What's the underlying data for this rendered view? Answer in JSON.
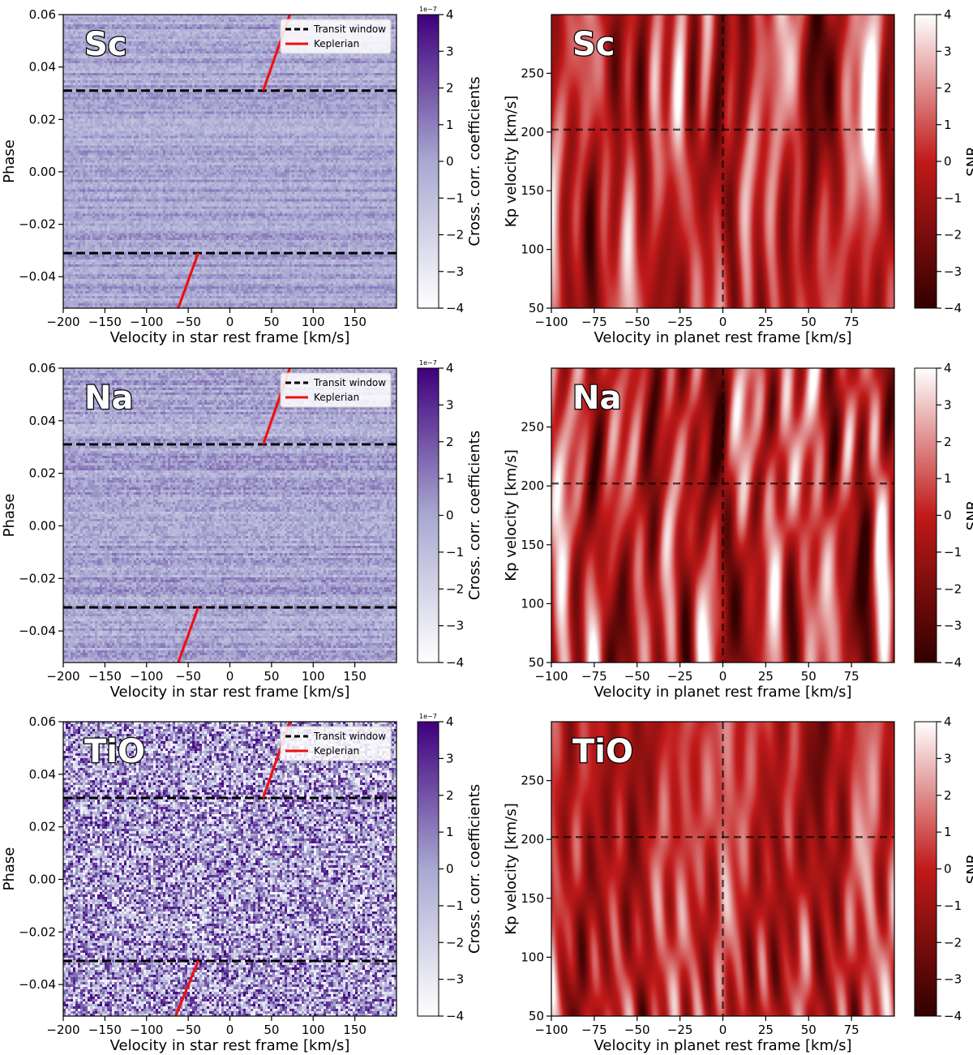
{
  "chart_data": [
    {
      "type": "heatmap",
      "panel": "ccf",
      "species": "Sc",
      "xlabel": "Velocity in star rest frame [km/s]",
      "ylabel": "Phase",
      "xlim": [
        -200,
        200
      ],
      "ylim": [
        -0.052,
        0.06
      ],
      "xticks": [
        -200,
        -150,
        -100,
        -50,
        0,
        50,
        100,
        150
      ],
      "xtick_labels": [
        "−200",
        "−150",
        "−100",
        "−50",
        "0",
        "50",
        "100",
        "150"
      ],
      "yticks": [
        0.06,
        0.04,
        0.02,
        0.0,
        -0.02,
        -0.04
      ],
      "ytick_labels": [
        "0.06",
        "0.04",
        "0.02",
        "0.00",
        "−0.02",
        "−0.04"
      ],
      "colorbar": {
        "label": "Cross. corr. coefficients",
        "scale": "1e−7",
        "ticks": [
          4,
          3,
          2,
          1,
          0,
          -1,
          -2,
          -3,
          -4
        ],
        "tick_labels": [
          "4",
          "3",
          "2",
          "1",
          "0",
          "−1",
          "−2",
          "−3",
          "−4"
        ]
      },
      "transit_window": [
        0.031,
        -0.031
      ],
      "keplerian": {
        "upper": [
          [
            40,
            0.031
          ],
          [
            72,
            0.06
          ]
        ],
        "lower": [
          [
            -38,
            -0.031
          ],
          [
            -62,
            -0.052
          ]
        ]
      },
      "legend": [
        "Transit window",
        "Keplerian"
      ],
      "noise": 0.18
    },
    {
      "type": "heatmap",
      "panel": "kp",
      "species": "Sc",
      "xlabel": "Velocity in planet rest frame [km/s]",
      "ylabel": "Kp velocity [km/s]",
      "xlim": [
        -100,
        100
      ],
      "ylim": [
        50,
        300
      ],
      "xticks": [
        -100,
        -75,
        -50,
        -25,
        0,
        25,
        50,
        75
      ],
      "xtick_labels": [
        "−100",
        "−75",
        "−50",
        "−25",
        "0",
        "25",
        "50",
        "75"
      ],
      "yticks": [
        250,
        200,
        150,
        100,
        50
      ],
      "ytick_labels": [
        "250",
        "200",
        "150",
        "100",
        "50"
      ],
      "colorbar": {
        "label": "SNR",
        "ticks": [
          4,
          3,
          2,
          1,
          0,
          -1,
          -2,
          -3,
          -4
        ],
        "tick_labels": [
          "4",
          "3",
          "2",
          "1",
          "0",
          "−1",
          "−2",
          "−3",
          "−4"
        ]
      },
      "crosshair": {
        "v": 0,
        "kp": 202
      }
    },
    {
      "type": "heatmap",
      "panel": "ccf",
      "species": "Na",
      "xlabel": "Velocity in star rest frame [km/s]",
      "ylabel": "Phase",
      "xlim": [
        -200,
        200
      ],
      "ylim": [
        -0.052,
        0.06
      ],
      "xticks": [
        -200,
        -150,
        -100,
        -50,
        0,
        50,
        100,
        150
      ],
      "xtick_labels": [
        "−200",
        "−150",
        "−100",
        "−50",
        "0",
        "50",
        "100",
        "150"
      ],
      "yticks": [
        0.06,
        0.04,
        0.02,
        0.0,
        -0.02,
        -0.04
      ],
      "ytick_labels": [
        "0.06",
        "0.04",
        "0.02",
        "0.00",
        "−0.02",
        "−0.04"
      ],
      "colorbar": {
        "label": "Cross. corr. coefficients",
        "scale": "1e−7",
        "ticks": [
          4,
          3,
          2,
          1,
          0,
          -1,
          -2,
          -3,
          -4
        ],
        "tick_labels": [
          "4",
          "3",
          "2",
          "1",
          "0",
          "−1",
          "−2",
          "−3",
          "−4"
        ]
      },
      "transit_window": [
        0.031,
        -0.031
      ],
      "keplerian": {
        "upper": [
          [
            40,
            0.031
          ],
          [
            72,
            0.06
          ]
        ],
        "lower": [
          [
            -38,
            -0.031
          ],
          [
            -62,
            -0.052
          ]
        ]
      },
      "legend": [
        "Transit window",
        "Keplerian"
      ],
      "noise": 0.22
    },
    {
      "type": "heatmap",
      "panel": "kp",
      "species": "Na",
      "xlabel": "Velocity in planet rest frame [km/s]",
      "ylabel": "Kp velocity [km/s]",
      "xlim": [
        -100,
        100
      ],
      "ylim": [
        50,
        300
      ],
      "xticks": [
        -100,
        -75,
        -50,
        -25,
        0,
        25,
        50,
        75
      ],
      "xtick_labels": [
        "−100",
        "−75",
        "−50",
        "−25",
        "0",
        "25",
        "50",
        "75"
      ],
      "yticks": [
        250,
        200,
        150,
        100,
        50
      ],
      "ytick_labels": [
        "250",
        "200",
        "150",
        "100",
        "50"
      ],
      "colorbar": {
        "label": "SNR",
        "ticks": [
          4,
          3,
          2,
          1,
          0,
          -1,
          -2,
          -3,
          -4
        ],
        "tick_labels": [
          "4",
          "3",
          "2",
          "1",
          "0",
          "−1",
          "−2",
          "−3",
          "−4"
        ]
      },
      "crosshair": {
        "v": 0,
        "kp": 202
      }
    },
    {
      "type": "heatmap",
      "panel": "ccf",
      "species": "TiO",
      "xlabel": "Velocity in star rest frame [km/s]",
      "ylabel": "Phase",
      "xlim": [
        -200,
        200
      ],
      "ylim": [
        -0.052,
        0.06
      ],
      "xticks": [
        -200,
        -150,
        -100,
        -50,
        0,
        50,
        100,
        150
      ],
      "xtick_labels": [
        "−200",
        "−150",
        "−100",
        "−50",
        "0",
        "50",
        "100",
        "150"
      ],
      "yticks": [
        0.06,
        0.04,
        0.02,
        0.0,
        -0.02,
        -0.04
      ],
      "ytick_labels": [
        "0.06",
        "0.04",
        "0.02",
        "0.00",
        "−0.02",
        "−0.04"
      ],
      "colorbar": {
        "label": "Cross. corr. coefficients",
        "scale": "1e−7",
        "ticks": [
          4,
          3,
          2,
          1,
          0,
          -1,
          -2,
          -3,
          -4
        ],
        "tick_labels": [
          "4",
          "3",
          "2",
          "1",
          "0",
          "−1",
          "−2",
          "−3",
          "−4"
        ]
      },
      "transit_window": [
        0.031,
        -0.031
      ],
      "keplerian": {
        "upper": [
          [
            40,
            0.031
          ],
          [
            72,
            0.06
          ]
        ],
        "lower": [
          [
            -38,
            -0.031
          ],
          [
            -65,
            -0.052
          ]
        ]
      },
      "legend": [
        "Transit window",
        "Keplerian"
      ],
      "noise": 0.95
    },
    {
      "type": "heatmap",
      "panel": "kp",
      "species": "TiO",
      "xlabel": "Velocity in planet rest frame [km/s]",
      "ylabel": "Kp velocity [km/s]",
      "xlim": [
        -100,
        100
      ],
      "ylim": [
        50,
        300
      ],
      "xticks": [
        -100,
        -75,
        -50,
        -25,
        0,
        25,
        50,
        75
      ],
      "xtick_labels": [
        "−100",
        "−75",
        "−50",
        "−25",
        "0",
        "25",
        "50",
        "75"
      ],
      "yticks": [
        250,
        200,
        150,
        100,
        50
      ],
      "ytick_labels": [
        "250",
        "200",
        "150",
        "100",
        "50"
      ],
      "colorbar": {
        "label": "SNR",
        "ticks": [
          4,
          3,
          2,
          1,
          0,
          -1,
          -2,
          -3,
          -4
        ],
        "tick_labels": [
          "4",
          "3",
          "2",
          "1",
          "0",
          "−1",
          "−2",
          "−3",
          "−4"
        ]
      },
      "crosshair": {
        "v": 0,
        "kp": 202
      }
    }
  ],
  "colors": {
    "ccf_low": "#ffffff",
    "ccf_mid": "#a9a9d2",
    "ccf_high": "#3f007d",
    "snr_low": "#330000",
    "snr_mid": "#c11a1a",
    "snr_high": "#ffffff",
    "keplerian": "#ee1111",
    "dashed": "#000000"
  }
}
